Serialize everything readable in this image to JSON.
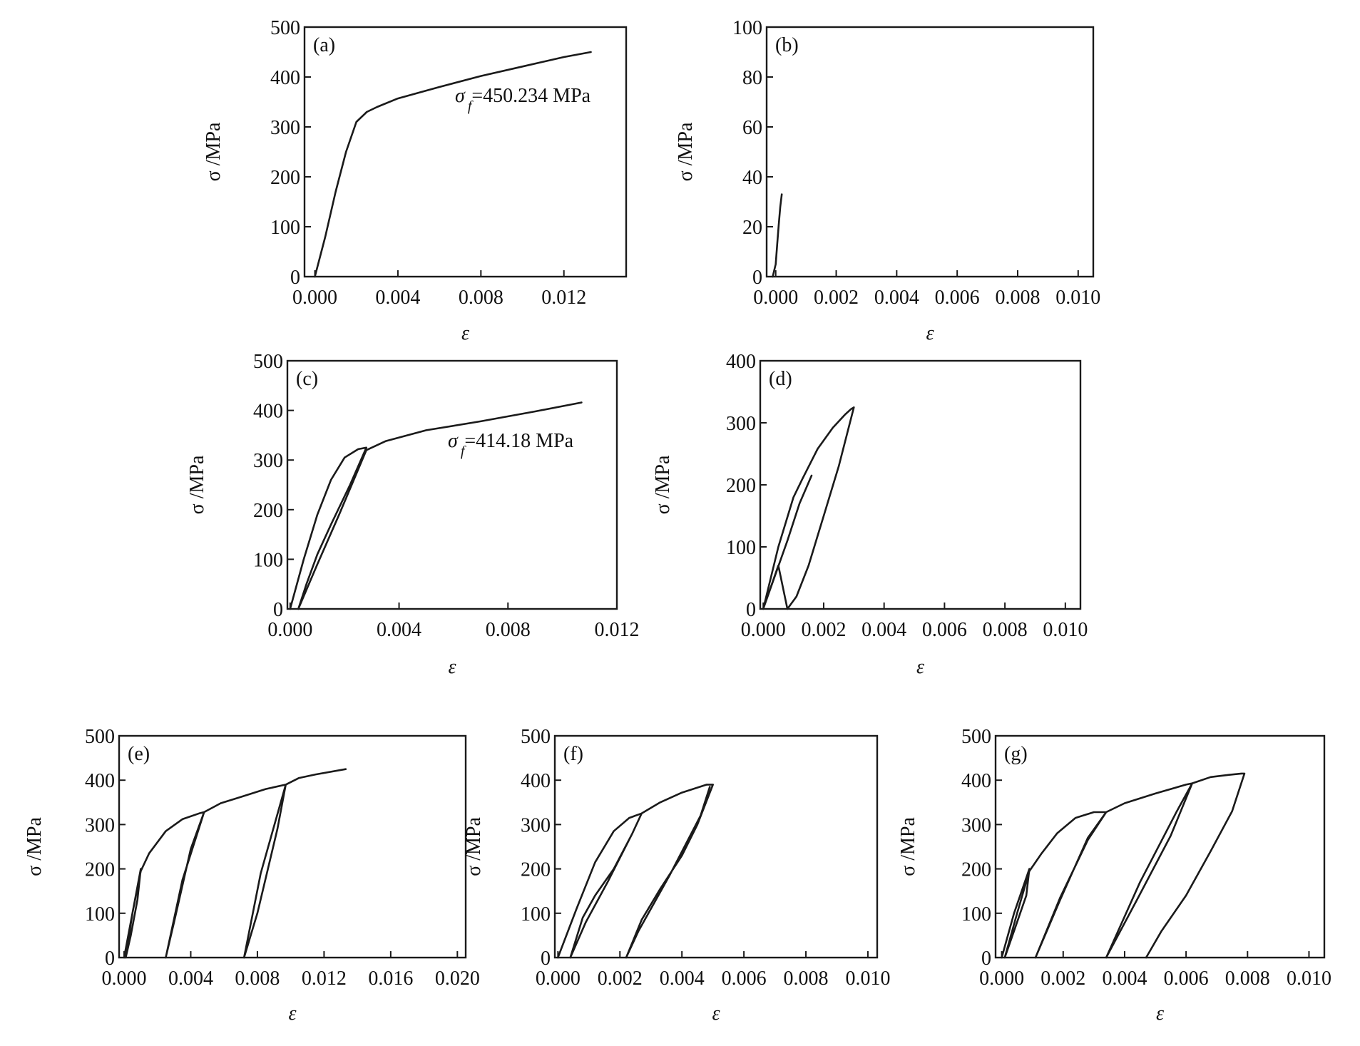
{
  "chart_data": [
    {
      "id": "a",
      "type": "line",
      "panel_label": "(a)",
      "xlabel": "ε",
      "ylabel": "σ /MPa",
      "xlim": [
        -0.0005,
        0.015
      ],
      "ylim": [
        0,
        500
      ],
      "xticks": [
        0.0,
        0.004,
        0.008,
        0.012
      ],
      "xtick_labels": [
        "0.000",
        "0.004",
        "0.008",
        "0.012"
      ],
      "yticks": [
        0,
        100,
        200,
        300,
        400,
        500
      ],
      "ytick_labels": [
        "0",
        "100",
        "200",
        "300",
        "400",
        "500"
      ],
      "annotation": {
        "symbol": "σ",
        "subscript": "f",
        "text": "=450.234 MPa"
      },
      "series": [
        {
          "x": [
            0.0,
            0.0005,
            0.001,
            0.0015,
            0.002,
            0.0025,
            0.003,
            0.004,
            0.006,
            0.008,
            0.01,
            0.012,
            0.0133
          ],
          "y": [
            0,
            80,
            170,
            250,
            310,
            330,
            340,
            357,
            380,
            402,
            421,
            440,
            450
          ]
        }
      ]
    },
    {
      "id": "b",
      "type": "line",
      "panel_label": "(b)",
      "xlabel": "ε",
      "ylabel": "σ /MPa",
      "xlim": [
        -0.0003,
        0.0105
      ],
      "ylim": [
        0,
        100
      ],
      "xticks": [
        0.0,
        0.002,
        0.004,
        0.006,
        0.008,
        0.01
      ],
      "xtick_labels": [
        "0.000",
        "0.002",
        "0.004",
        "0.006",
        "0.008",
        "0.010"
      ],
      "yticks": [
        0,
        20,
        40,
        60,
        80,
        100
      ],
      "ytick_labels": [
        "0",
        "20",
        "40",
        "60",
        "80",
        "100"
      ],
      "series": [
        {
          "x": [
            -0.0001,
            0.0,
            5e-05,
            0.0001,
            0.00015,
            0.0002
          ],
          "y": [
            0,
            5,
            13,
            21,
            28,
            33
          ]
        }
      ]
    },
    {
      "id": "c",
      "type": "line",
      "panel_label": "(c)",
      "xlabel": "ε",
      "ylabel": "σ /MPa",
      "xlim": [
        -0.0001,
        0.012
      ],
      "ylim": [
        0,
        500
      ],
      "xticks": [
        0.0,
        0.004,
        0.008,
        0.012
      ],
      "xtick_labels": [
        "0.000",
        "0.004",
        "0.008",
        "0.012"
      ],
      "yticks": [
        0,
        100,
        200,
        300,
        400,
        500
      ],
      "ytick_labels": [
        "0",
        "100",
        "200",
        "300",
        "400",
        "500"
      ],
      "annotation": {
        "symbol": "σ",
        "subscript": "f",
        "text": "=414.18 MPa"
      },
      "series": [
        {
          "x": [
            0.0,
            0.0005,
            0.001,
            0.0015,
            0.002,
            0.0025,
            0.0028,
            0.0022,
            0.0015,
            0.001,
            0.0006,
            0.0003,
            0.001,
            0.0018,
            0.0028,
            0.0035,
            0.005,
            0.007,
            0.009,
            0.0107
          ],
          "y": [
            0,
            100,
            190,
            260,
            305,
            322,
            325,
            250,
            170,
            110,
            50,
            0,
            90,
            190,
            320,
            338,
            360,
            378,
            398,
            416
          ]
        }
      ]
    },
    {
      "id": "d",
      "type": "line",
      "panel_label": "(d)",
      "xlabel": "ε",
      "ylabel": "σ /MPa",
      "xlim": [
        -0.0001,
        0.0105
      ],
      "ylim": [
        0,
        400
      ],
      "xticks": [
        0.0,
        0.002,
        0.004,
        0.006,
        0.008,
        0.01
      ],
      "xtick_labels": [
        "0.000",
        "0.002",
        "0.004",
        "0.006",
        "0.008",
        "0.010"
      ],
      "yticks": [
        0,
        100,
        200,
        300,
        400
      ],
      "ytick_labels": [
        "0",
        "100",
        "200",
        "300",
        "400"
      ],
      "series": [
        {
          "x": [
            0.0,
            0.0005,
            0.001,
            0.0013,
            0.0018,
            0.0023,
            0.0027,
            0.0029,
            0.003,
            0.0025,
            0.002,
            0.0015,
            0.0011,
            0.0008,
            0.0005,
            0.0,
            0.0008,
            0.0012,
            0.0016
          ],
          "y": [
            0,
            100,
            180,
            210,
            258,
            292,
            313,
            322,
            325,
            230,
            150,
            70,
            20,
            0,
            70,
            0,
            110,
            170,
            215
          ]
        }
      ]
    },
    {
      "id": "e",
      "type": "line",
      "panel_label": "(e)",
      "xlabel": "ε",
      "ylabel": "σ /MPa",
      "xlim": [
        -0.0003,
        0.0205
      ],
      "ylim": [
        0,
        500
      ],
      "xticks": [
        0.0,
        0.004,
        0.008,
        0.012,
        0.016,
        0.02
      ],
      "xtick_labels": [
        "0.000",
        "0.004",
        "0.008",
        "0.012",
        "0.016",
        "0.020"
      ],
      "yticks": [
        0,
        100,
        200,
        300,
        400,
        500
      ],
      "ytick_labels": [
        "0",
        "100",
        "200",
        "300",
        "400",
        "500"
      ],
      "series": [
        {
          "x": [
            0.0,
            0.0005,
            0.001,
            0.0008,
            0.0004,
            0.0001,
            0.0005,
            0.001,
            0.0015,
            0.0025,
            0.0035,
            0.0045,
            0.0048,
            0.004,
            0.003,
            0.0025,
            0.0035,
            0.0048,
            0.0058,
            0.007,
            0.0085,
            0.0097,
            0.0092,
            0.008,
            0.0072,
            0.0082,
            0.0097,
            0.0105,
            0.0115,
            0.0133
          ],
          "y": [
            0,
            100,
            200,
            130,
            50,
            0,
            100,
            195,
            235,
            285,
            312,
            325,
            328,
            245,
            80,
            0,
            175,
            328,
            348,
            362,
            380,
            390,
            290,
            100,
            0,
            190,
            390,
            405,
            413,
            425
          ]
        }
      ]
    },
    {
      "id": "f",
      "type": "line",
      "panel_label": "(f)",
      "xlabel": "ε",
      "ylabel": "σ /MPa",
      "xlim": [
        -0.0001,
        0.0103
      ],
      "ylim": [
        0,
        500
      ],
      "xticks": [
        0.0,
        0.002,
        0.004,
        0.006,
        0.008,
        0.01
      ],
      "xtick_labels": [
        "0.000",
        "0.002",
        "0.004",
        "0.006",
        "0.008",
        "0.010"
      ],
      "yticks": [
        0,
        100,
        200,
        300,
        400,
        500
      ],
      "ytick_labels": [
        "0",
        "100",
        "200",
        "300",
        "400",
        "500"
      ],
      "series": [
        {
          "x": [
            0.0,
            0.0006,
            0.0012,
            0.0018,
            0.0023,
            0.0027,
            0.0024,
            0.0018,
            0.0012,
            0.0008,
            0.0004,
            0.0009,
            0.0016,
            0.0024,
            0.0027,
            0.0033,
            0.004,
            0.0048,
            0.005,
            0.0045,
            0.004,
            0.0033,
            0.0027,
            0.0022,
            0.0026,
            0.0036,
            0.0046,
            0.0049
          ],
          "y": [
            0,
            110,
            215,
            285,
            315,
            325,
            280,
            200,
            140,
            90,
            0,
            80,
            170,
            280,
            325,
            350,
            372,
            390,
            390,
            300,
            230,
            155,
            85,
            0,
            60,
            185,
            320,
            385
          ]
        }
      ]
    },
    {
      "id": "g",
      "type": "line",
      "panel_label": "(g)",
      "xlabel": "ε",
      "ylabel": "σ /MPa",
      "xlim": [
        -0.0002,
        0.0105
      ],
      "ylim": [
        0,
        500
      ],
      "xticks": [
        0.0,
        0.002,
        0.004,
        0.006,
        0.008,
        0.01
      ],
      "xtick_labels": [
        "0.000",
        "0.002",
        "0.004",
        "0.006",
        "0.008",
        "0.010"
      ],
      "yticks": [
        0,
        100,
        200,
        300,
        400,
        500
      ],
      "ytick_labels": [
        "0",
        "100",
        "200",
        "300",
        "400",
        "500"
      ],
      "series": [
        {
          "x": [
            0.0,
            0.0004,
            0.0009,
            0.0008,
            0.0004,
            0.0001,
            0.0005,
            0.0009,
            0.0013,
            0.0018,
            0.0024,
            0.003,
            0.0034,
            0.0028,
            0.0019,
            0.0011,
            0.0019,
            0.0028,
            0.0034,
            0.004,
            0.005,
            0.006,
            0.0062,
            0.0057,
            0.0045,
            0.0034,
            0.0044,
            0.0055,
            0.0062,
            0.0068,
            0.0074,
            0.0078,
            0.0079,
            0.0075,
            0.0068,
            0.006,
            0.0052,
            0.0047
          ],
          "y": [
            0,
            100,
            200,
            140,
            60,
            0,
            100,
            195,
            235,
            280,
            315,
            328,
            328,
            265,
            135,
            0,
            130,
            270,
            328,
            348,
            370,
            390,
            393,
            330,
            170,
            0,
            130,
            275,
            393,
            407,
            412,
            415,
            415,
            330,
            240,
            140,
            60,
            0
          ]
        }
      ]
    }
  ]
}
